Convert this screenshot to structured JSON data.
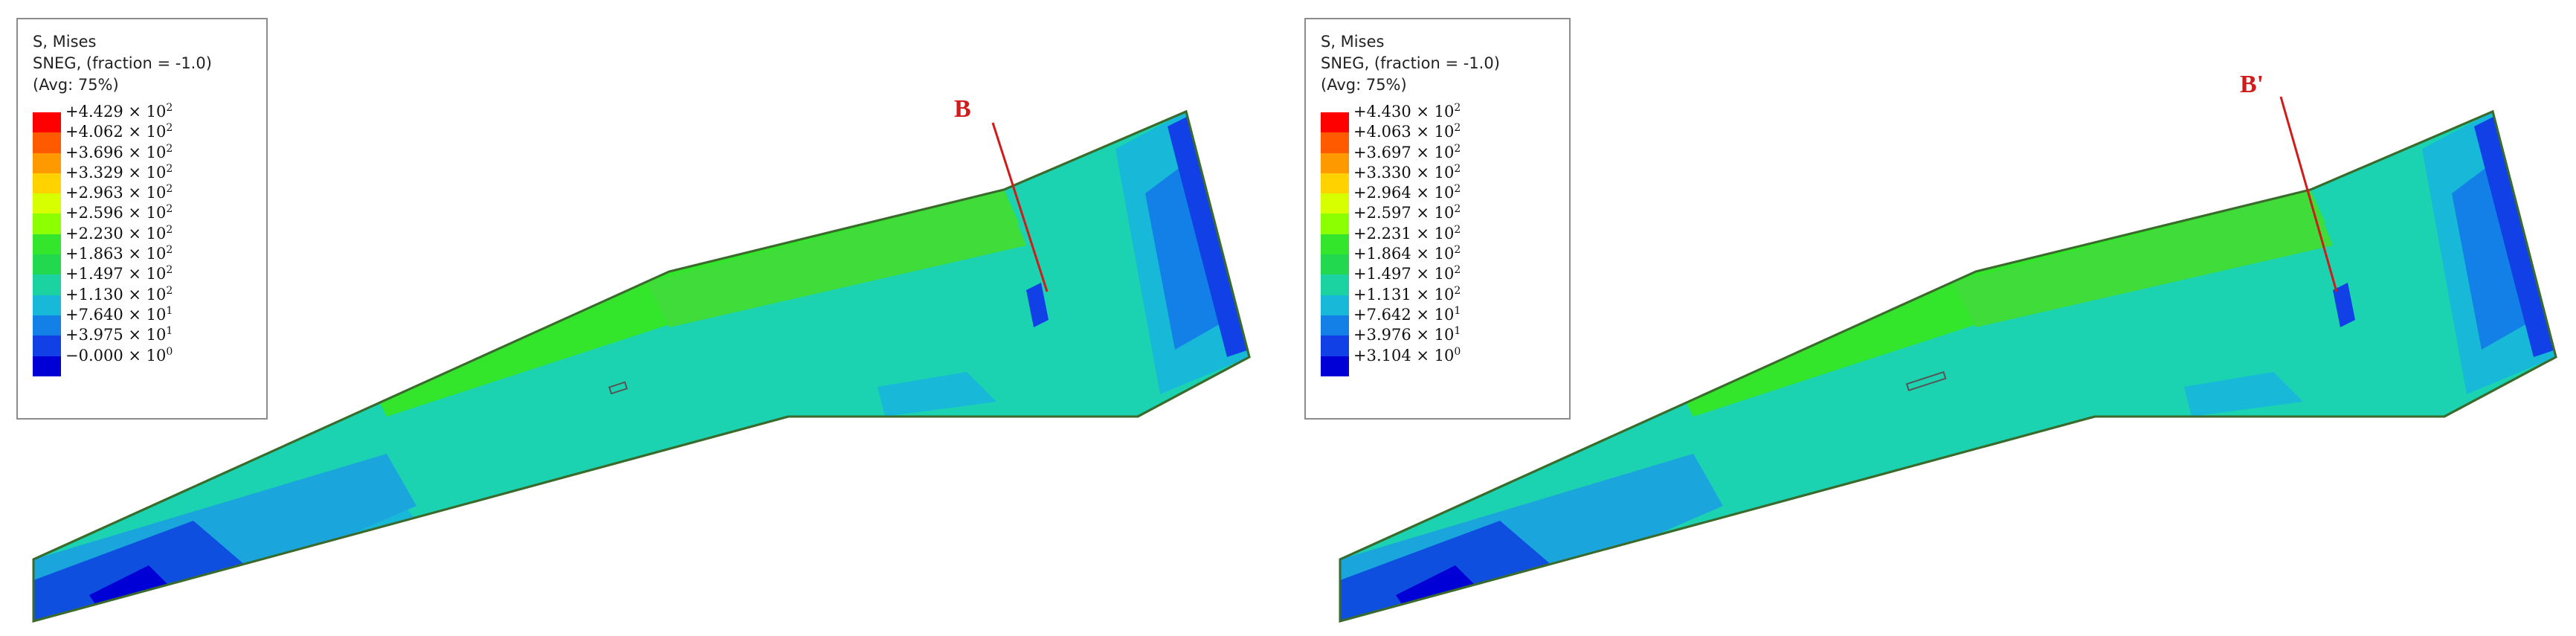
{
  "panels": [
    {
      "legend": {
        "title": "S, Mises",
        "line2": "SNEG, (fraction = -1.0)",
        "line3": "(Avg: 75%)",
        "entries": [
          {
            "mant": "+4.429 × 10",
            "exp": "2"
          },
          {
            "mant": "+4.062 × 10",
            "exp": "2"
          },
          {
            "mant": "+3.696 × 10",
            "exp": "2"
          },
          {
            "mant": "+3.329 × 10",
            "exp": "2"
          },
          {
            "mant": "+2.963 × 10",
            "exp": "2"
          },
          {
            "mant": "+2.596 × 10",
            "exp": "2"
          },
          {
            "mant": "+2.230 × 10",
            "exp": "2"
          },
          {
            "mant": "+1.863 × 10",
            "exp": "2"
          },
          {
            "mant": "+1.497 × 10",
            "exp": "2"
          },
          {
            "mant": "+1.130 × 10",
            "exp": "2"
          },
          {
            "mant": "+7.640 × 10",
            "exp": "1"
          },
          {
            "mant": "+3.975 × 10",
            "exp": "1"
          },
          {
            "mant": "−0.000 × 10",
            "exp": "0"
          }
        ]
      },
      "marker": "B"
    },
    {
      "legend": {
        "title": "S, Mises",
        "line2": "SNEG, (fraction = -1.0)",
        "line3": "(Avg: 75%)",
        "entries": [
          {
            "mant": "+4.430 × 10",
            "exp": "2"
          },
          {
            "mant": "+4.063 × 10",
            "exp": "2"
          },
          {
            "mant": "+3.697 × 10",
            "exp": "2"
          },
          {
            "mant": "+3.330 × 10",
            "exp": "2"
          },
          {
            "mant": "+2.964 × 10",
            "exp": "2"
          },
          {
            "mant": "+2.597 × 10",
            "exp": "2"
          },
          {
            "mant": "+2.231 × 10",
            "exp": "2"
          },
          {
            "mant": "+1.864 × 10",
            "exp": "2"
          },
          {
            "mant": "+1.497 × 10",
            "exp": "2"
          },
          {
            "mant": "+1.131 × 10",
            "exp": "2"
          },
          {
            "mant": "+7.642 × 10",
            "exp": "1"
          },
          {
            "mant": "+3.976 × 10",
            "exp": "1"
          },
          {
            "mant": "+3.104 × 10",
            "exp": "0"
          }
        ]
      },
      "marker": "B'"
    }
  ],
  "colors": {
    "scale": [
      "#ff0000",
      "#ff5a00",
      "#ff9900",
      "#ffd200",
      "#d8ff00",
      "#8cff00",
      "#33e62b",
      "#22d84f",
      "#1bd3a0",
      "#18b9d8",
      "#1280e6",
      "#1040e6",
      "#0000d6"
    ],
    "marker": "#d11a1a",
    "outline": "#3a6b2c"
  }
}
